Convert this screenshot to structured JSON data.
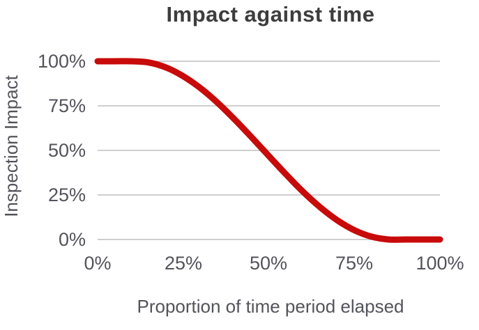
{
  "chart": {
    "title": "Impact against time",
    "x_axis": {
      "title": "Proportion of time period elapsed",
      "ticks": [
        "0%",
        "25%",
        "50%",
        "75%",
        "100%"
      ]
    },
    "y_axis": {
      "title": "Inspection Impact",
      "ticks": [
        "100%",
        "75%",
        "50%",
        "25%",
        "0%"
      ]
    },
    "colors": {
      "line": "#C80A0A",
      "grid": "#CFCFCF",
      "title_text": "#3D3D3D",
      "axis_text": "#53535B",
      "background": "#FFFFFF"
    }
  },
  "chart_data": {
    "type": "line",
    "title": "Impact against time",
    "xlabel": "Proportion of time period elapsed",
    "ylabel": "Inspection Impact",
    "xlim": [
      0,
      100
    ],
    "ylim": [
      0,
      100
    ],
    "x_tick_values": [
      0,
      25,
      50,
      75,
      100
    ],
    "y_tick_values": [
      0,
      25,
      50,
      75,
      100
    ],
    "x_tick_labels": [
      "0%",
      "25%",
      "50%",
      "75%",
      "100%"
    ],
    "y_tick_labels": [
      "0%",
      "25%",
      "50%",
      "75%",
      "100%"
    ],
    "grid": "horizontal-only",
    "legend": "none",
    "series": [
      {
        "name": "Inspection Impact",
        "color": "#C80A0A",
        "line_width": 9,
        "x": [
          0,
          5,
          10,
          15,
          20,
          25,
          30,
          35,
          40,
          45,
          50,
          55,
          60,
          65,
          70,
          75,
          80,
          85,
          90,
          95,
          100
        ],
        "y": [
          100,
          100,
          100,
          99.3,
          96.5,
          91.6,
          85.0,
          76.8,
          67.4,
          57.3,
          46.9,
          36.6,
          26.8,
          18.1,
          10.8,
          5.2,
          1.6,
          0,
          0,
          0,
          0
        ]
      }
    ]
  }
}
